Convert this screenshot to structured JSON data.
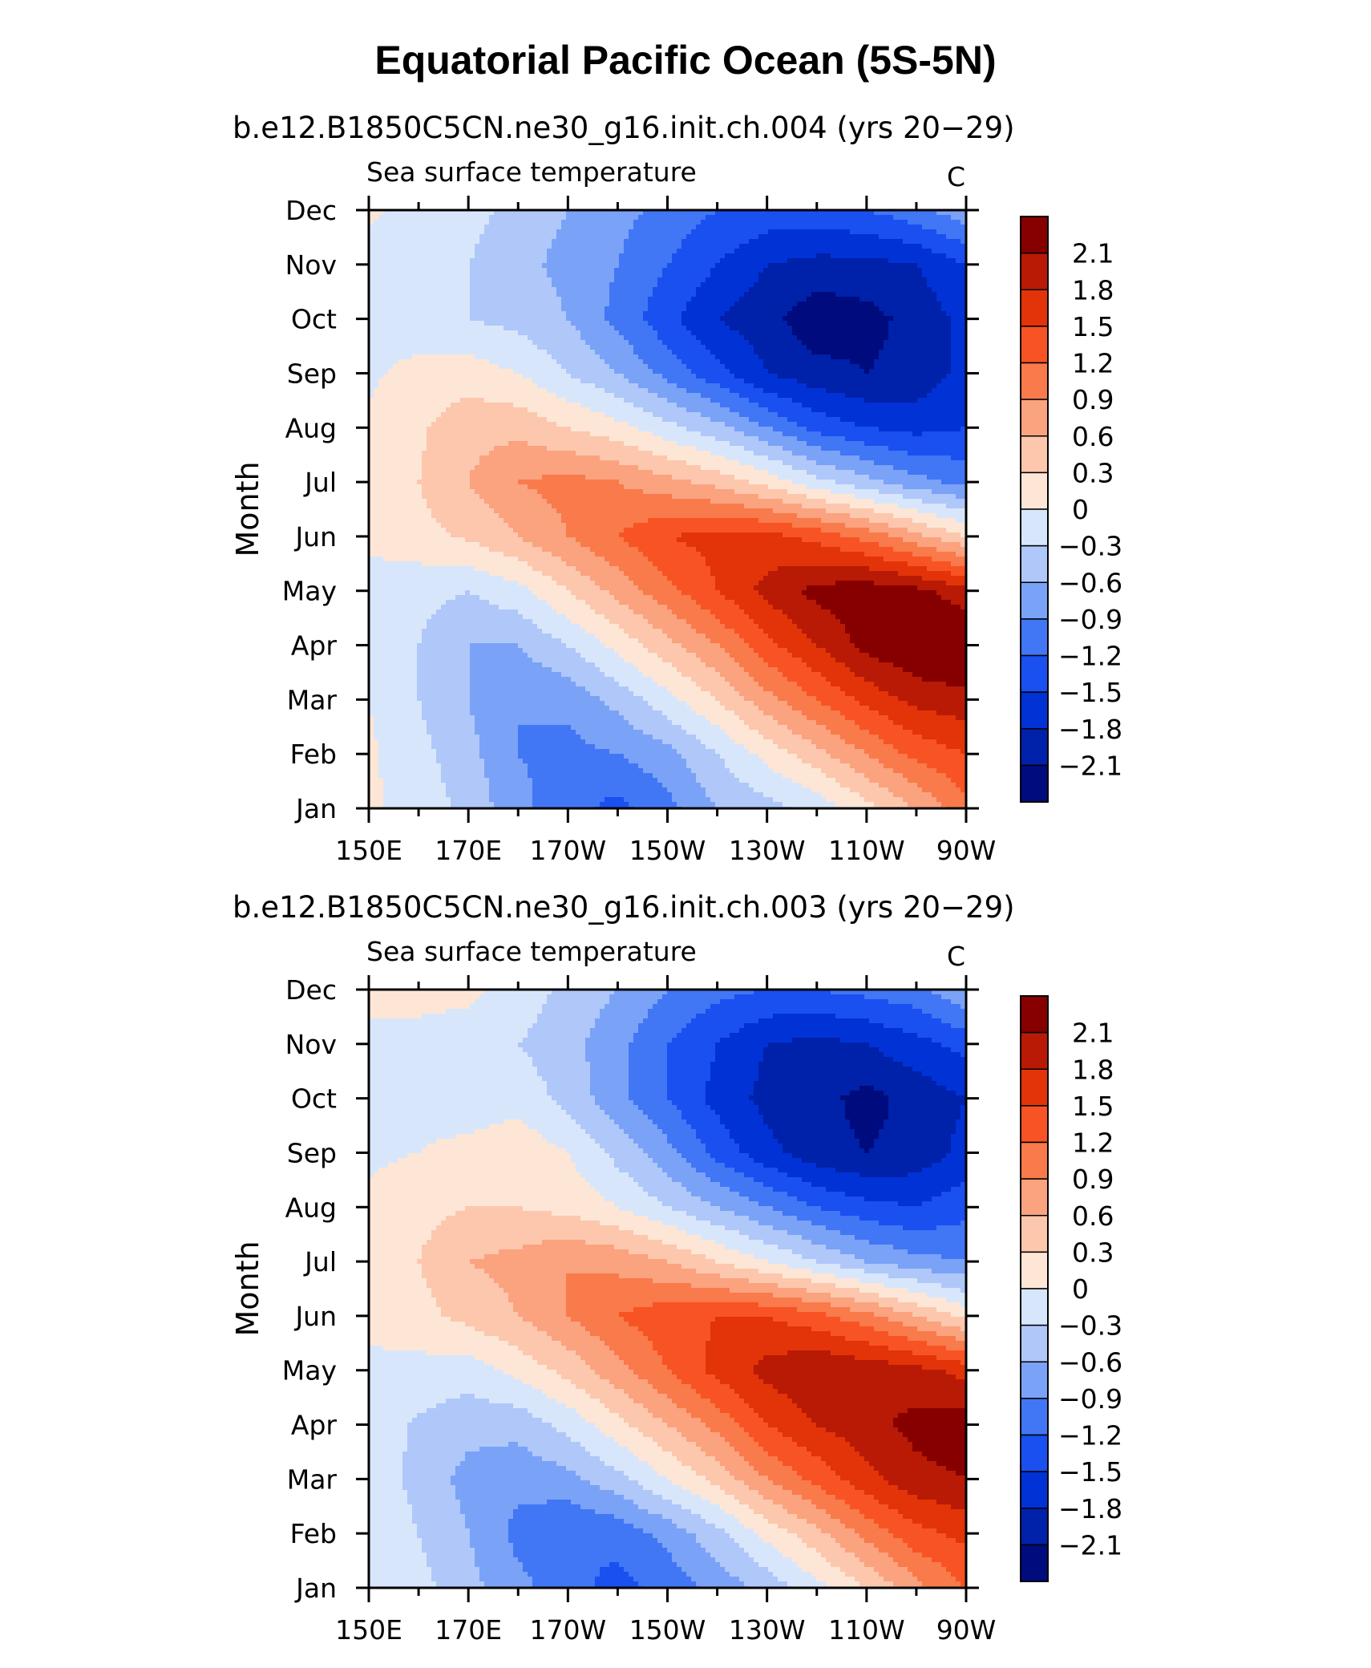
{
  "figure_title": "Equatorial Pacific Ocean (5S-5N)",
  "colors": {
    "-2.4": "#000b7d",
    "-2.1": "#0021a9",
    "-1.8": "#0032d6",
    "-1.5": "#1a4ff0",
    "-1.2": "#4176f5",
    "-0.9": "#7aa2f7",
    "-0.6": "#b0c7fa",
    "-0.3": "#d8e6fb",
    "0": "#fde6d6",
    "0.3": "#fcc7ad",
    "0.6": "#fba27f",
    "0.9": "#f97a4a",
    "1.2": "#f85324",
    "1.5": "#e23408",
    "1.8": "#b81a05",
    "2.1": "#860000"
  },
  "chart_data": [
    {
      "type": "heatmap",
      "title": "b.e12.B1850C5CN.ne30_g16.init.ch.004 (yrs 20−29)",
      "variable": "Sea surface temperature",
      "units": "C",
      "xlabel": "",
      "ylabel": "Month",
      "xticks": [
        "150E",
        "170E",
        "170W",
        "150W",
        "130W",
        "110W",
        "90W"
      ],
      "yticks": [
        "Jan",
        "Feb",
        "Mar",
        "Apr",
        "May",
        "Jun",
        "Jul",
        "Aug",
        "Sep",
        "Oct",
        "Nov",
        "Dec"
      ],
      "colorbar_labels": [
        "2.1",
        "1.8",
        "1.5",
        "1.2",
        "0.9",
        "0.6",
        "0.3",
        "0",
        "−0.3",
        "−0.6",
        "−0.9",
        "−1.2",
        "−1.5",
        "−1.8",
        "−2.1"
      ],
      "levels": [
        -2.1,
        -1.8,
        -1.5,
        -1.2,
        -0.9,
        -0.6,
        -0.3,
        0,
        0.3,
        0.6,
        0.9,
        1.2,
        1.5,
        1.8,
        2.1
      ],
      "field": {
        "lon": [
          150,
          160,
          170,
          180,
          190,
          200,
          210,
          220,
          230,
          240,
          250,
          260,
          270
        ],
        "month": [
          1,
          2,
          3,
          4,
          5,
          6,
          7,
          8,
          9,
          10,
          11,
          12
        ],
        "values": [
          [
            0.05,
            -0.1,
            -0.4,
            -0.8,
            -1.1,
            -1.3,
            -1.0,
            -0.6,
            -0.4,
            -0.2,
            0.2,
            0.6,
            1.1
          ],
          [
            0.05,
            -0.2,
            -0.5,
            -0.9,
            -1.0,
            -0.9,
            -0.7,
            -0.3,
            0.1,
            0.5,
            0.9,
            1.3,
            1.5
          ],
          [
            0.0,
            -0.3,
            -0.6,
            -0.9,
            -0.8,
            -0.5,
            -0.1,
            0.3,
            0.8,
            1.2,
            1.6,
            1.9,
            2.0
          ],
          [
            -0.1,
            -0.3,
            -0.6,
            -0.6,
            -0.3,
            0.1,
            0.5,
            0.9,
            1.4,
            1.8,
            2.2,
            2.4,
            2.5
          ],
          [
            -0.1,
            -0.2,
            -0.3,
            -0.1,
            0.3,
            0.7,
            1.1,
            1.5,
            1.9,
            2.2,
            2.3,
            2.2,
            1.9
          ],
          [
            0.05,
            0.2,
            0.35,
            0.6,
            0.9,
            1.2,
            1.5,
            1.6,
            1.6,
            1.4,
            1.1,
            0.7,
            0.3
          ],
          [
            0.1,
            0.3,
            0.6,
            0.9,
            1.0,
            0.9,
            0.7,
            0.5,
            0.2,
            -0.2,
            -0.5,
            -0.8,
            -1.0
          ],
          [
            0.05,
            0.25,
            0.5,
            0.5,
            0.3,
            0.1,
            -0.2,
            -0.5,
            -0.9,
            -1.3,
            -1.5,
            -1.6,
            -1.5
          ],
          [
            -0.05,
            0.1,
            0.15,
            0.0,
            -0.3,
            -0.6,
            -1.0,
            -1.4,
            -1.8,
            -2.0,
            -2.1,
            -2.0,
            -1.7
          ],
          [
            -0.1,
            -0.2,
            -0.3,
            -0.4,
            -0.6,
            -1.0,
            -1.4,
            -1.8,
            -2.0,
            -2.3,
            -2.2,
            -2.0,
            -1.7
          ],
          [
            -0.1,
            -0.2,
            -0.3,
            -0.5,
            -0.7,
            -0.9,
            -1.2,
            -1.5,
            -1.8,
            -1.9,
            -1.9,
            -1.8,
            -1.5
          ],
          [
            0.05,
            -0.1,
            -0.2,
            -0.4,
            -0.6,
            -0.8,
            -1.0,
            -1.2,
            -1.3,
            -1.3,
            -1.2,
            -1.0,
            -0.7
          ]
        ]
      }
    },
    {
      "type": "heatmap",
      "title": "b.e12.B1850C5CN.ne30_g16.init.ch.003 (yrs 20−29)",
      "variable": "Sea surface temperature",
      "units": "C",
      "xlabel": "",
      "ylabel": "Month",
      "xticks": [
        "150E",
        "170E",
        "170W",
        "150W",
        "130W",
        "110W",
        "90W"
      ],
      "yticks": [
        "Jan",
        "Feb",
        "Mar",
        "Apr",
        "May",
        "Jun",
        "Jul",
        "Aug",
        "Sep",
        "Oct",
        "Nov",
        "Dec"
      ],
      "colorbar_labels": [
        "2.1",
        "1.8",
        "1.5",
        "1.2",
        "0.9",
        "0.6",
        "0.3",
        "0",
        "−0.3",
        "−0.6",
        "−0.9",
        "−1.2",
        "−1.5",
        "−1.8",
        "−2.1"
      ],
      "levels": [
        -2.1,
        -1.8,
        -1.5,
        -1.2,
        -0.9,
        -0.6,
        -0.3,
        0,
        0.3,
        0.6,
        0.9,
        1.2,
        1.5,
        1.8,
        2.1
      ],
      "field": {
        "lon": [
          150,
          160,
          170,
          180,
          190,
          200,
          210,
          220,
          230,
          240,
          250,
          260,
          270
        ],
        "month": [
          1,
          2,
          3,
          4,
          5,
          6,
          7,
          8,
          9,
          10,
          11,
          12
        ],
        "values": [
          [
            -0.05,
            -0.2,
            -0.5,
            -0.8,
            -1.1,
            -1.3,
            -1.1,
            -0.8,
            -0.5,
            -0.1,
            0.3,
            0.8,
            1.2
          ],
          [
            -0.05,
            -0.3,
            -0.6,
            -1.0,
            -1.2,
            -1.1,
            -0.8,
            -0.4,
            0.1,
            0.5,
            1.0,
            1.4,
            1.6
          ],
          [
            -0.1,
            -0.4,
            -0.7,
            -0.8,
            -0.7,
            -0.4,
            0.0,
            0.4,
            0.9,
            1.3,
            1.7,
            2.0,
            2.1
          ],
          [
            -0.1,
            -0.35,
            -0.5,
            -0.5,
            -0.2,
            0.2,
            0.6,
            1.0,
            1.5,
            1.8,
            2.0,
            2.2,
            2.3
          ],
          [
            -0.05,
            -0.1,
            -0.15,
            0.1,
            0.4,
            0.8,
            1.2,
            1.6,
            1.9,
            2.1,
            2.0,
            1.9,
            1.7
          ],
          [
            0.05,
            0.2,
            0.4,
            0.6,
            0.9,
            1.2,
            1.4,
            1.5,
            1.5,
            1.3,
            1.0,
            0.6,
            0.2
          ],
          [
            0.1,
            0.3,
            0.6,
            0.7,
            0.9,
            0.8,
            0.6,
            0.3,
            0.0,
            -0.3,
            -0.6,
            -0.8,
            -0.9
          ],
          [
            0.05,
            0.2,
            0.3,
            0.3,
            0.2,
            0.0,
            -0.3,
            -0.6,
            -0.9,
            -1.2,
            -1.4,
            -1.5,
            -1.3
          ],
          [
            -0.05,
            0.0,
            0.1,
            0.2,
            0.0,
            -0.4,
            -0.8,
            -1.3,
            -1.7,
            -2.0,
            -2.1,
            -2.0,
            -1.7
          ],
          [
            -0.1,
            -0.1,
            -0.2,
            -0.1,
            -0.4,
            -0.8,
            -1.2,
            -1.6,
            -1.9,
            -2.0,
            -2.2,
            -2.0,
            -1.8
          ],
          [
            -0.05,
            -0.05,
            -0.1,
            -0.3,
            -0.5,
            -0.8,
            -1.2,
            -1.5,
            -1.8,
            -1.9,
            -1.8,
            -1.6,
            -1.4
          ],
          [
            0.05,
            0.05,
            0.05,
            -0.1,
            -0.4,
            -0.6,
            -0.9,
            -1.1,
            -1.2,
            -1.2,
            -1.1,
            -1.0,
            -0.6
          ]
        ]
      }
    }
  ]
}
